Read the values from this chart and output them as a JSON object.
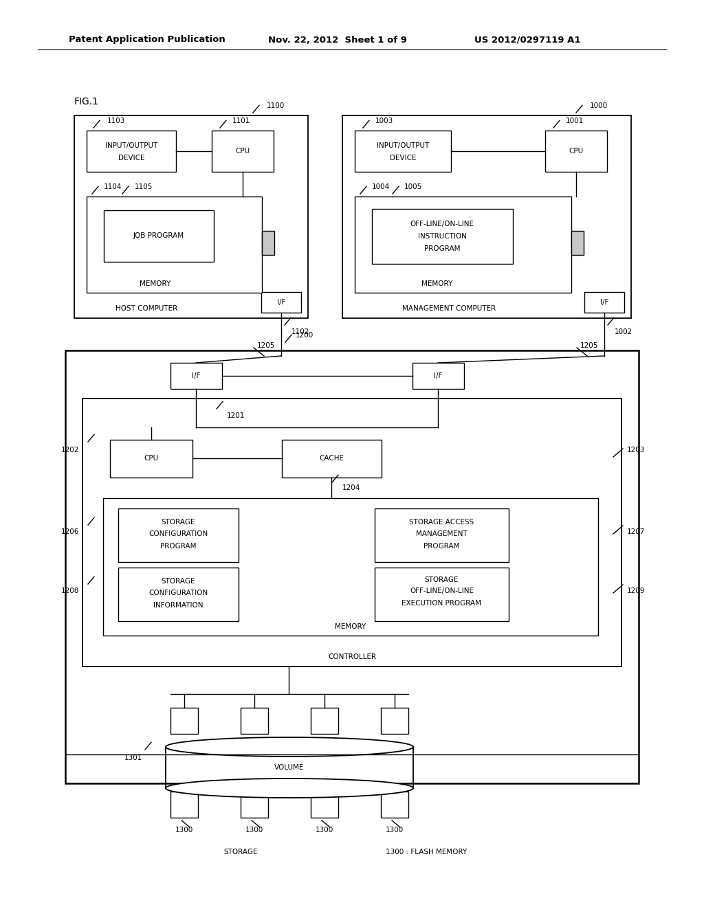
{
  "header_left": "Patent Application Publication",
  "header_mid": "Nov. 22, 2012  Sheet 1 of 9",
  "header_right": "US 2012/0297119 A1",
  "fig_label": "FIG.1",
  "bg_color": "#ffffff"
}
